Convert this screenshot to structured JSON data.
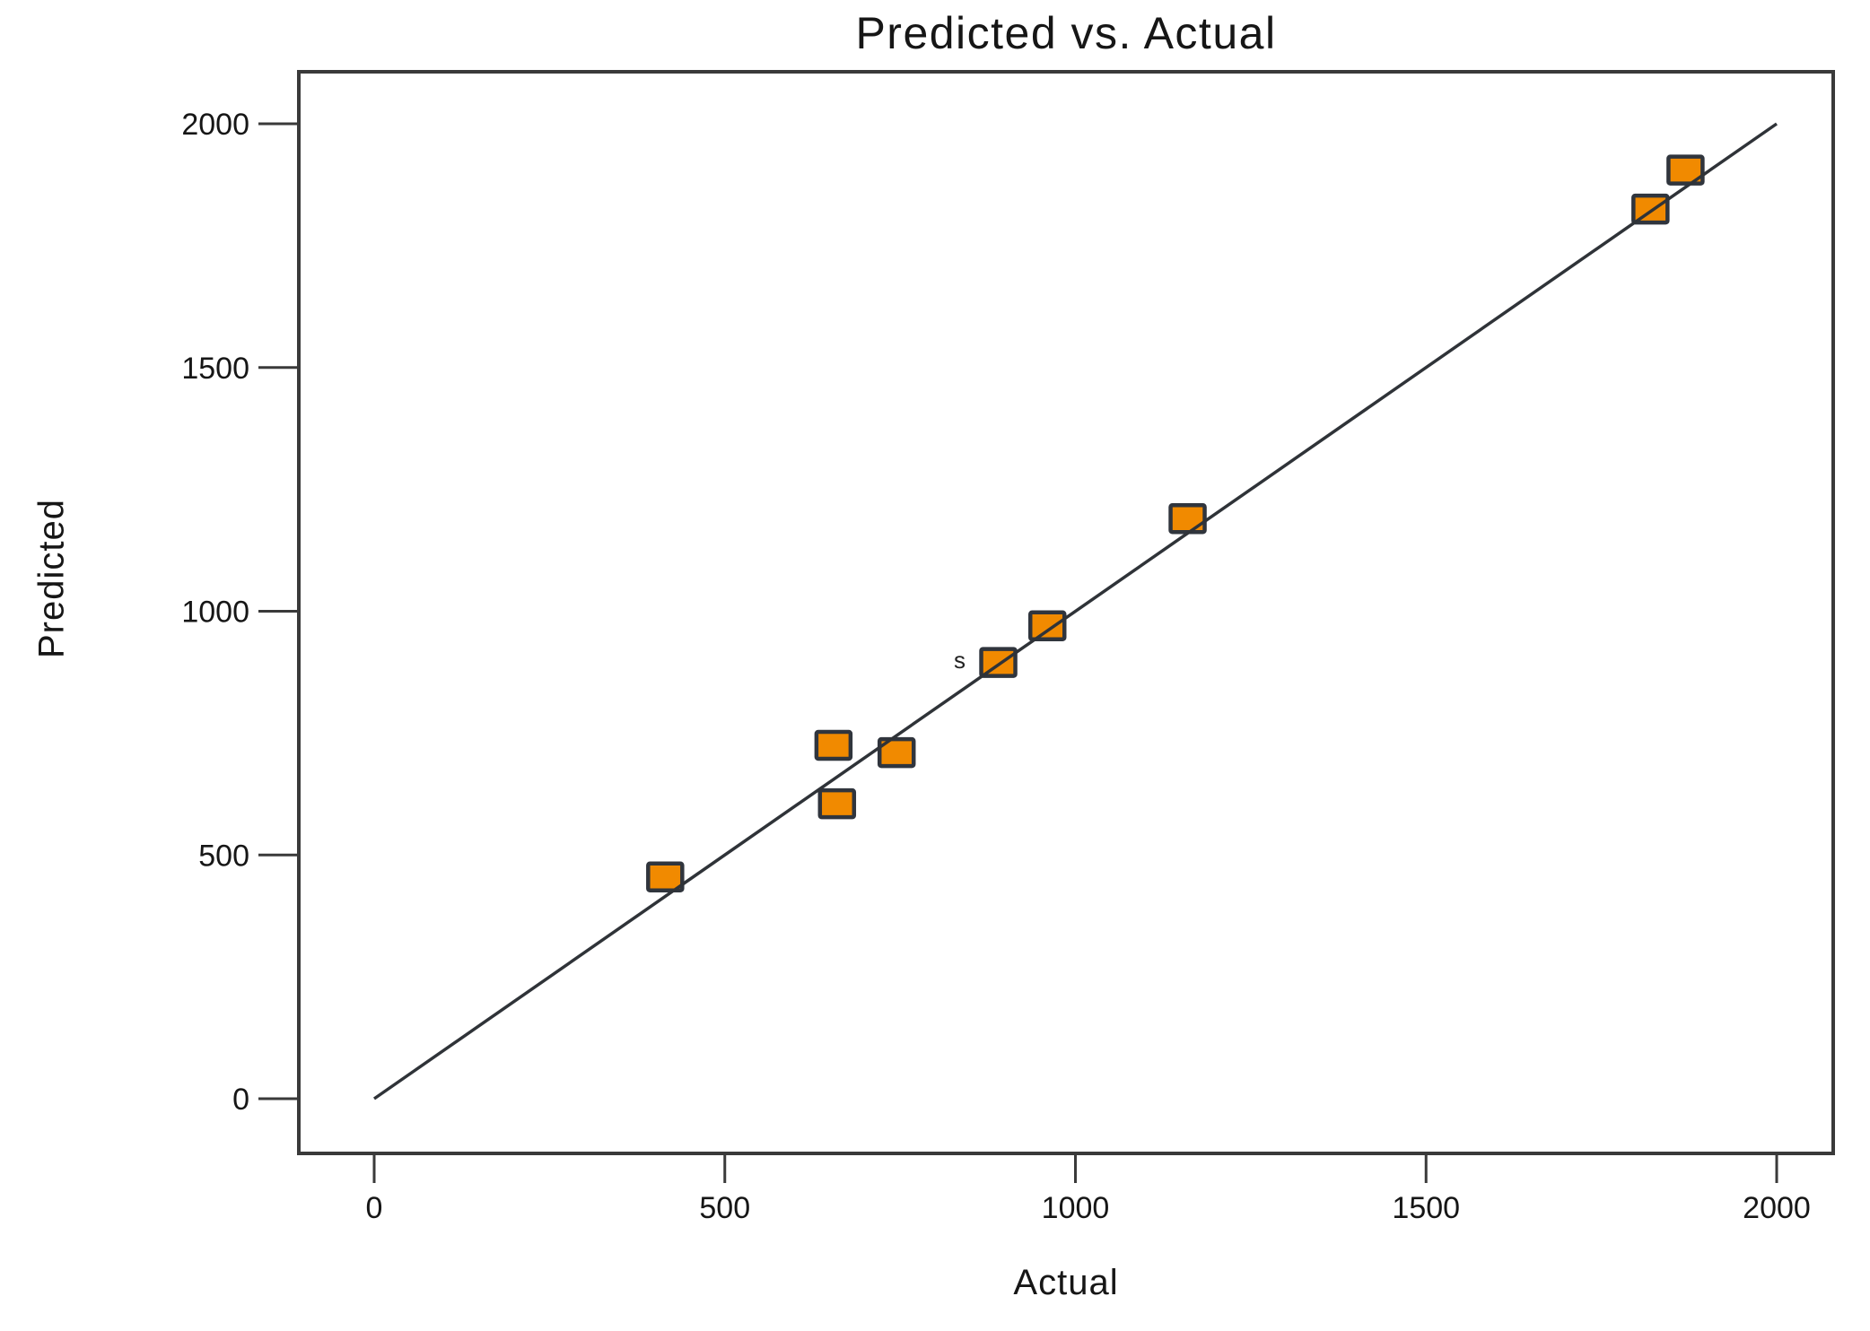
{
  "chart_data": {
    "type": "scatter",
    "title": "Predicted vs. Actual",
    "xlabel": "Actual",
    "ylabel": "Predicted",
    "x_ticks": [
      0,
      500,
      1000,
      1500,
      2000
    ],
    "y_ticks": [
      0,
      500,
      1000,
      1500,
      2000
    ],
    "xlim": [
      -110,
      2085
    ],
    "ylim": [
      -115,
      2110
    ],
    "grid": false,
    "legend": null,
    "identity_line": {
      "from": {
        "x": 0,
        "y": 0
      },
      "to": {
        "x": 2000,
        "y": 2000
      }
    },
    "points": [
      {
        "x": 415,
        "y": 455
      },
      {
        "x": 655,
        "y": 725
      },
      {
        "x": 660,
        "y": 605
      },
      {
        "x": 745,
        "y": 710
      },
      {
        "x": 890,
        "y": 895
      },
      {
        "x": 960,
        "y": 970
      },
      {
        "x": 1160,
        "y": 1190
      },
      {
        "x": 1820,
        "y": 1825
      },
      {
        "x": 1870,
        "y": 1905
      }
    ],
    "annotations": [
      {
        "text": "s",
        "x": 835,
        "y": 900
      }
    ],
    "marker": {
      "shape": "square",
      "fill": "#F18A00",
      "stroke": "#30353D"
    },
    "colors": {
      "line": "#2F3338",
      "axis": "#3A3A3A",
      "text": "#161616",
      "background": "#FFFFFF"
    }
  }
}
